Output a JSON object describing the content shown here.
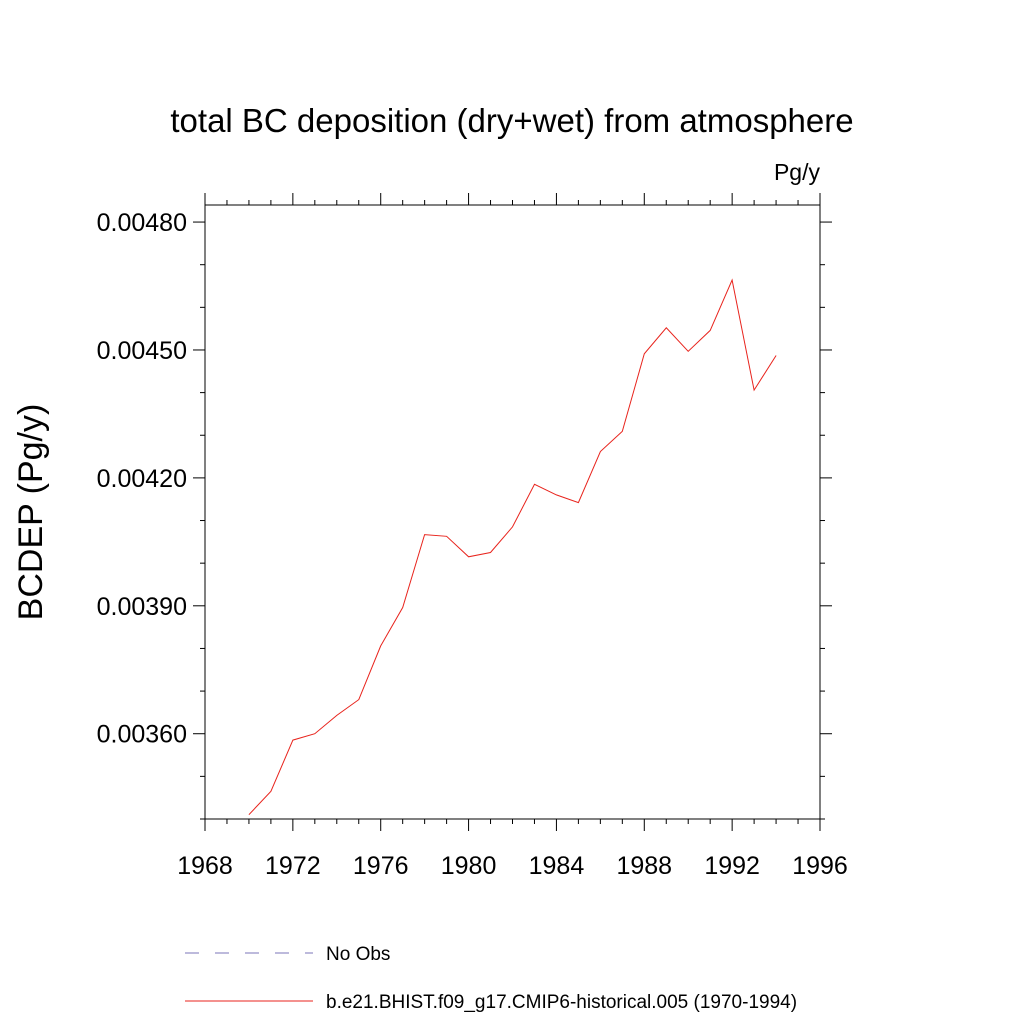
{
  "chart_data": {
    "type": "line",
    "title": "total BC deposition (dry+wet) from atmosphere",
    "units_label": "Pg/y",
    "ylabel": "BCDEP  (Pg/y)",
    "xlabel": "",
    "xlim": [
      1968,
      1996
    ],
    "ylim": [
      0.0034,
      0.00484
    ],
    "x_ticks": [
      1968,
      1972,
      1976,
      1980,
      1984,
      1988,
      1992,
      1996
    ],
    "x_tick_labels": [
      "1968",
      "1972",
      "1976",
      "1980",
      "1984",
      "1988",
      "1992",
      "1996"
    ],
    "y_ticks": [
      0.0036,
      0.0039,
      0.0042,
      0.0045,
      0.0048
    ],
    "y_tick_labels": [
      "0.00360",
      "0.00390",
      "0.00420",
      "0.00450",
      "0.00480"
    ],
    "grid": false,
    "legend_position": "bottom",
    "legend": [
      {
        "label": "No Obs",
        "style": "dashed",
        "color": "#7b74b8"
      },
      {
        "label": "b.e21.BHIST.f09_g17.CMIP6-historical.005 (1970-1994)",
        "style": "solid",
        "color": "#e8231c"
      }
    ],
    "series": [
      {
        "color": "#e8231c",
        "x": [
          1970,
          1971,
          1972,
          1973,
          1974,
          1975,
          1976,
          1977,
          1978,
          1979,
          1980,
          1981,
          1982,
          1983,
          1984,
          1985,
          1986,
          1987,
          1988,
          1989,
          1990,
          1991,
          1992,
          1993,
          1994
        ],
        "y": [
          0.00341,
          0.003465,
          0.003585,
          0.0036,
          0.003643,
          0.00368,
          0.003806,
          0.003896,
          0.004067,
          0.004063,
          0.004015,
          0.004025,
          0.004085,
          0.004185,
          0.00416,
          0.004142,
          0.004262,
          0.004309,
          0.004491,
          0.004552,
          0.004497,
          0.004546,
          0.004664,
          0.004406,
          0.004487
        ]
      }
    ]
  }
}
